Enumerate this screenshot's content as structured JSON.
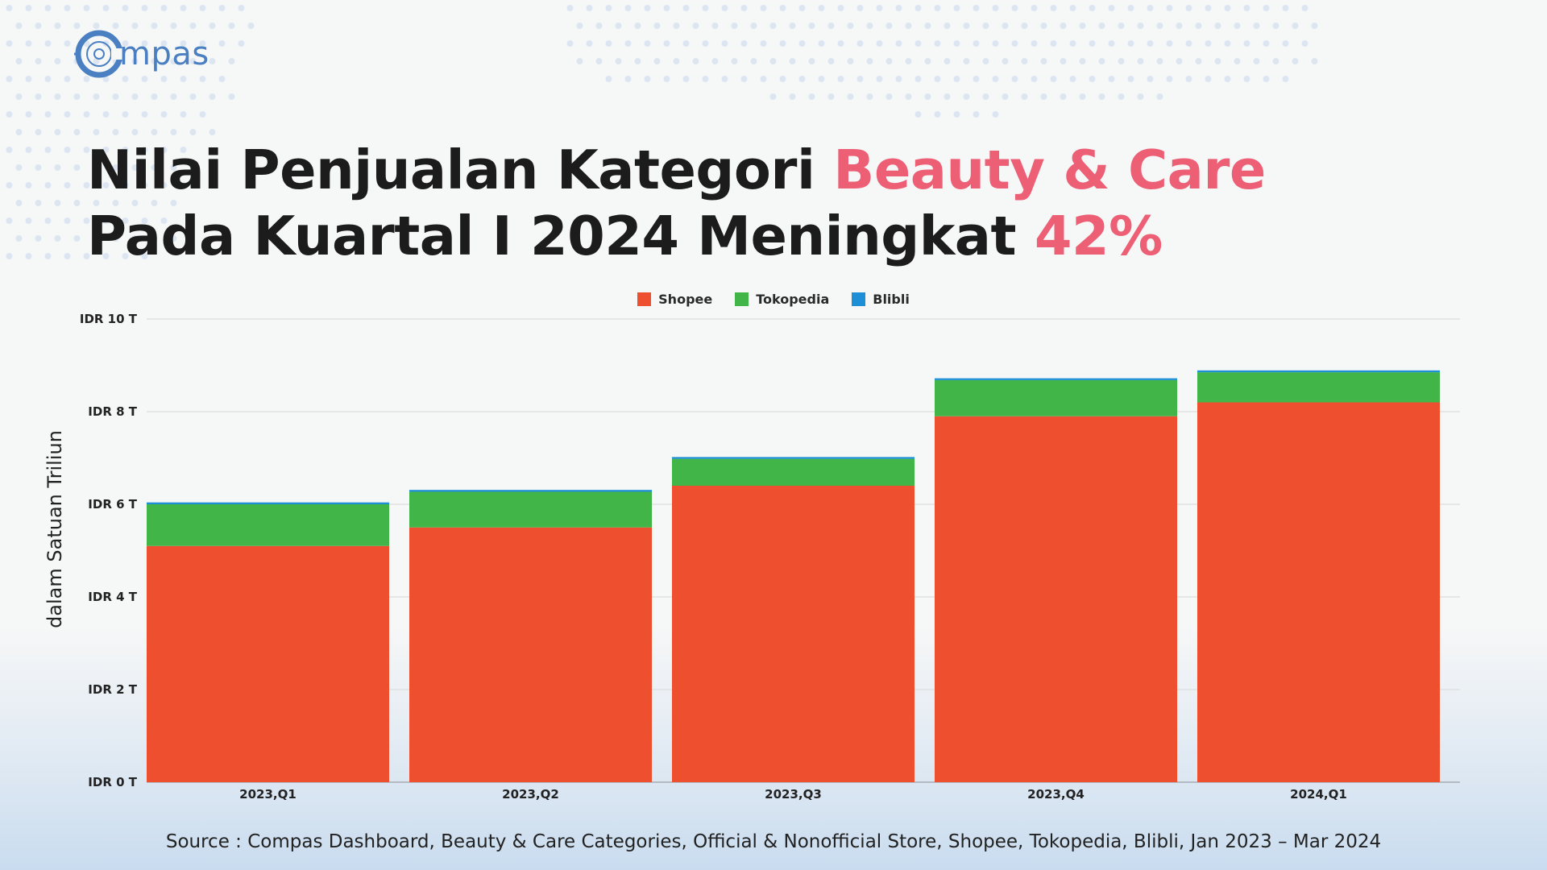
{
  "logo": {
    "text": "mpas"
  },
  "title": {
    "line1_prefix": "Nilai Penjualan Kategori ",
    "line1_highlight": "Beauty & Care",
    "line2_prefix": "Pada Kuartal I 2024 Meningkat ",
    "line2_highlight": "42%"
  },
  "colors": {
    "highlight": "#ec5f75",
    "shopee": "#ee4f2f",
    "tokopedia": "#42b549",
    "blibli": "#1d8fd6"
  },
  "legend": [
    {
      "label": "Shopee",
      "color": "#ee4f2f"
    },
    {
      "label": "Tokopedia",
      "color": "#42b549"
    },
    {
      "label": "Blibli",
      "color": "#1d8fd6"
    }
  ],
  "source": "Source : Compas Dashboard, Beauty & Care Categories, Official & Nonofficial Store, Shopee, Tokopedia, Blibli, Jan 2023 – Mar 2024",
  "chart_data": {
    "type": "bar",
    "stacked": true,
    "categories": [
      "2023,Q1",
      "2023,Q2",
      "2023,Q3",
      "2023,Q4",
      "2024,Q1"
    ],
    "series": [
      {
        "name": "Shopee",
        "values": [
          5.1,
          5.5,
          6.4,
          7.9,
          8.2
        ]
      },
      {
        "name": "Tokopedia",
        "values": [
          0.9,
          0.77,
          0.58,
          0.78,
          0.65
        ]
      },
      {
        "name": "Blibli",
        "values": [
          0.04,
          0.04,
          0.04,
          0.04,
          0.04
        ]
      }
    ],
    "ylabel": "dalam Satuan Triliun",
    "xlabel": "",
    "ylim": [
      0,
      10
    ],
    "yticks": [
      {
        "value": 0,
        "label": "IDR 0 T"
      },
      {
        "value": 2,
        "label": "IDR 2 T"
      },
      {
        "value": 4,
        "label": "IDR 4 T"
      },
      {
        "value": 6,
        "label": "IDR 6 T"
      },
      {
        "value": 8,
        "label": "IDR 8 T"
      },
      {
        "value": 10,
        "label": "IDR 10 T"
      }
    ],
    "grid": true,
    "legend_position": "top-center"
  }
}
